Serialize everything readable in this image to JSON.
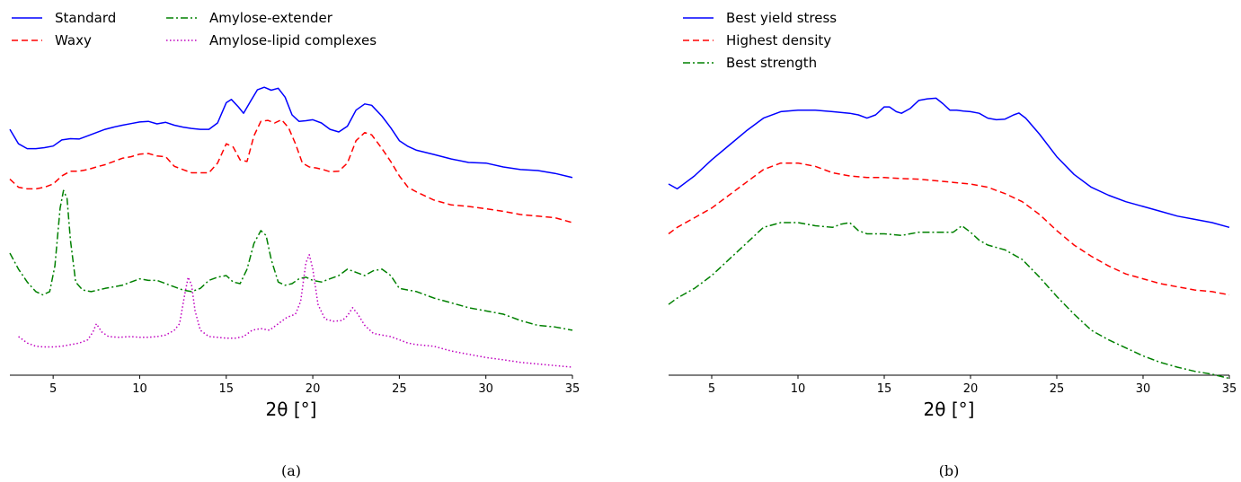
{
  "chart_data": [
    {
      "type": "line",
      "caption": "(a)",
      "xlabel": "2θ [°]",
      "ylabel": "",
      "xlim": [
        2.5,
        35
      ],
      "xticks": [
        5,
        10,
        15,
        20,
        25,
        30,
        35
      ],
      "ylim": [
        0,
        1
      ],
      "y_axis_visible": false,
      "grid": false,
      "legend_position": "top-left, two columns",
      "series": [
        {
          "name": "Standard",
          "color": "#0000ff",
          "dash": "solid",
          "x": [
            2.5,
            3,
            3.5,
            4,
            4.5,
            5,
            5.5,
            6,
            6.5,
            7,
            7.5,
            8,
            8.5,
            9,
            9.5,
            10,
            10.5,
            11,
            11.5,
            12,
            12.5,
            13,
            13.5,
            14,
            14.5,
            15,
            15.3,
            15.7,
            16,
            16.4,
            16.8,
            17.2,
            17.6,
            18,
            18.4,
            18.8,
            19.2,
            19.6,
            20,
            20.5,
            21,
            21.5,
            22,
            22.5,
            23,
            23.4,
            24,
            24.5,
            25,
            25.5,
            26,
            27,
            28,
            29,
            30,
            31,
            32,
            33,
            34,
            35
          ],
          "y": [
            0.765,
            0.72,
            0.705,
            0.705,
            0.708,
            0.713,
            0.732,
            0.736,
            0.735,
            0.745,
            0.755,
            0.765,
            0.772,
            0.778,
            0.783,
            0.788,
            0.79,
            0.782,
            0.787,
            0.778,
            0.772,
            0.768,
            0.765,
            0.765,
            0.785,
            0.848,
            0.858,
            0.835,
            0.815,
            0.852,
            0.888,
            0.896,
            0.887,
            0.893,
            0.865,
            0.81,
            0.79,
            0.792,
            0.795,
            0.785,
            0.765,
            0.757,
            0.775,
            0.825,
            0.844,
            0.84,
            0.806,
            0.77,
            0.73,
            0.712,
            0.7,
            0.687,
            0.673,
            0.662,
            0.66,
            0.648,
            0.64,
            0.637,
            0.628,
            0.615
          ]
        },
        {
          "name": "Waxy",
          "color": "#ff0000",
          "dash": "dashed",
          "x": [
            2.5,
            3,
            3.5,
            4,
            4.5,
            5,
            5.5,
            6,
            6.5,
            7,
            7.5,
            8,
            8.5,
            9,
            9.5,
            10,
            10.5,
            11,
            11.5,
            12,
            12.5,
            13,
            13.5,
            14,
            14.5,
            15,
            15.4,
            15.8,
            16.2,
            16.6,
            17,
            17.4,
            17.8,
            18.2,
            18.6,
            19,
            19.4,
            19.8,
            20.2,
            20.6,
            21,
            21.5,
            22,
            22.5,
            23,
            23.4,
            24,
            24.5,
            25,
            25.5,
            26,
            27,
            28,
            29,
            30,
            31,
            32,
            33,
            34,
            35
          ],
          "y": [
            0.61,
            0.585,
            0.58,
            0.58,
            0.585,
            0.595,
            0.62,
            0.635,
            0.635,
            0.64,
            0.648,
            0.655,
            0.665,
            0.675,
            0.68,
            0.688,
            0.69,
            0.682,
            0.68,
            0.65,
            0.64,
            0.63,
            0.63,
            0.63,
            0.66,
            0.72,
            0.71,
            0.67,
            0.665,
            0.745,
            0.79,
            0.793,
            0.785,
            0.795,
            0.77,
            0.72,
            0.66,
            0.648,
            0.645,
            0.64,
            0.633,
            0.635,
            0.66,
            0.73,
            0.755,
            0.748,
            0.705,
            0.665,
            0.62,
            0.585,
            0.57,
            0.545,
            0.53,
            0.525,
            0.518,
            0.51,
            0.5,
            0.495,
            0.49,
            0.475
          ]
        },
        {
          "name": "Amylose-extender",
          "color": "#008000",
          "dash": "dashdot",
          "x": [
            2.5,
            3,
            3.5,
            4,
            4.4,
            4.8,
            5.1,
            5.4,
            5.6,
            5.8,
            6,
            6.3,
            6.7,
            7.2,
            8,
            9,
            10,
            10.5,
            11,
            11.5,
            12,
            12.5,
            13,
            13.5,
            14,
            14.5,
            15,
            15.4,
            15.8,
            16.2,
            16.6,
            17,
            17.3,
            17.6,
            18,
            18.4,
            18.8,
            19.2,
            19.6,
            20,
            20.5,
            21,
            21.5,
            22,
            22.5,
            23,
            23.5,
            24,
            24.5,
            25,
            25.5,
            26,
            27,
            28,
            29,
            30,
            31,
            32,
            33,
            34,
            35
          ],
          "y": [
            0.38,
            0.33,
            0.29,
            0.26,
            0.25,
            0.26,
            0.34,
            0.52,
            0.575,
            0.55,
            0.42,
            0.29,
            0.265,
            0.26,
            0.27,
            0.28,
            0.3,
            0.295,
            0.295,
            0.285,
            0.275,
            0.265,
            0.26,
            0.27,
            0.295,
            0.305,
            0.31,
            0.29,
            0.285,
            0.33,
            0.41,
            0.45,
            0.435,
            0.36,
            0.29,
            0.28,
            0.285,
            0.3,
            0.305,
            0.295,
            0.29,
            0.3,
            0.31,
            0.33,
            0.32,
            0.31,
            0.325,
            0.33,
            0.31,
            0.27,
            0.265,
            0.26,
            0.24,
            0.225,
            0.21,
            0.2,
            0.19,
            0.17,
            0.155,
            0.15,
            0.14
          ]
        },
        {
          "name": "Amylose-lipid complexes",
          "color": "#bf00bf",
          "dash": "dotted",
          "x": [
            3,
            3.5,
            4,
            4.5,
            5,
            5.5,
            6,
            6.5,
            7,
            7.3,
            7.5,
            7.8,
            8.2,
            8.8,
            9.5,
            10,
            10.5,
            11,
            11.5,
            12,
            12.3,
            12.6,
            12.8,
            13,
            13.2,
            13.5,
            14,
            14.5,
            15,
            15.5,
            16,
            16.5,
            17,
            17.5,
            18,
            18.5,
            19,
            19.3,
            19.6,
            19.8,
            20,
            20.3,
            20.7,
            21.2,
            21.7,
            22,
            22.3,
            22.6,
            23,
            23.5,
            24,
            24.5,
            25,
            25.5,
            26,
            27,
            28,
            29,
            30,
            31,
            32,
            33,
            34,
            35
          ],
          "y": [
            0.12,
            0.1,
            0.09,
            0.088,
            0.088,
            0.09,
            0.095,
            0.1,
            0.11,
            0.135,
            0.16,
            0.135,
            0.12,
            0.118,
            0.12,
            0.118,
            0.118,
            0.12,
            0.125,
            0.14,
            0.16,
            0.25,
            0.305,
            0.28,
            0.2,
            0.14,
            0.12,
            0.118,
            0.115,
            0.115,
            0.12,
            0.14,
            0.145,
            0.14,
            0.16,
            0.18,
            0.19,
            0.23,
            0.35,
            0.375,
            0.33,
            0.22,
            0.175,
            0.168,
            0.17,
            0.185,
            0.21,
            0.19,
            0.155,
            0.13,
            0.125,
            0.12,
            0.11,
            0.1,
            0.095,
            0.09,
            0.075,
            0.065,
            0.055,
            0.048,
            0.04,
            0.035,
            0.03,
            0.025
          ]
        }
      ]
    },
    {
      "type": "line",
      "caption": "(b)",
      "xlabel": "2θ [°]",
      "ylabel": "",
      "xlim": [
        2.5,
        35
      ],
      "xticks": [
        5,
        10,
        15,
        20,
        25,
        30,
        35
      ],
      "ylim": [
        0,
        1
      ],
      "y_axis_visible": false,
      "grid": false,
      "legend_position": "top-left",
      "series": [
        {
          "name": "Best yield stress",
          "color": "#0000ff",
          "dash": "solid",
          "x": [
            2.5,
            3,
            3.5,
            4,
            5,
            6,
            7,
            8,
            9,
            10,
            11,
            12,
            13,
            13.5,
            14,
            14.5,
            15,
            15.3,
            15.7,
            16,
            16.5,
            17,
            17.5,
            18,
            18.4,
            18.8,
            19.2,
            19.6,
            20,
            20.5,
            21,
            21.5,
            22,
            22.5,
            22.8,
            23.2,
            24,
            25,
            26,
            27,
            28,
            29,
            30,
            31,
            32,
            33,
            34,
            35
          ],
          "y": [
            0.595,
            0.58,
            0.6,
            0.62,
            0.67,
            0.715,
            0.76,
            0.8,
            0.82,
            0.825,
            0.825,
            0.82,
            0.815,
            0.81,
            0.8,
            0.81,
            0.835,
            0.835,
            0.82,
            0.815,
            0.83,
            0.855,
            0.86,
            0.862,
            0.845,
            0.825,
            0.825,
            0.822,
            0.82,
            0.815,
            0.8,
            0.795,
            0.797,
            0.81,
            0.816,
            0.8,
            0.75,
            0.68,
            0.625,
            0.585,
            0.56,
            0.54,
            0.525,
            0.51,
            0.495,
            0.485,
            0.475,
            0.46
          ]
        },
        {
          "name": "Highest density",
          "color": "#ff0000",
          "dash": "dashed",
          "x": [
            2.5,
            3,
            4,
            5,
            6,
            7,
            8,
            9,
            10,
            11,
            12,
            13,
            14,
            15,
            16,
            17,
            18,
            19,
            20,
            21,
            22,
            23,
            24,
            25,
            26,
            27,
            28,
            29,
            30,
            31,
            32,
            33,
            34,
            35
          ],
          "y": [
            0.44,
            0.46,
            0.49,
            0.52,
            0.56,
            0.6,
            0.64,
            0.66,
            0.66,
            0.65,
            0.63,
            0.62,
            0.615,
            0.615,
            0.612,
            0.61,
            0.605,
            0.6,
            0.595,
            0.585,
            0.565,
            0.54,
            0.5,
            0.45,
            0.405,
            0.37,
            0.34,
            0.315,
            0.3,
            0.285,
            0.275,
            0.265,
            0.26,
            0.25
          ]
        },
        {
          "name": "Best strength",
          "color": "#008000",
          "dash": "dashdot",
          "x": [
            2.5,
            3,
            4,
            5,
            6,
            7,
            8,
            9,
            10,
            11,
            12,
            12.5,
            13,
            13.5,
            14,
            15,
            16,
            17,
            18,
            19,
            19.5,
            20,
            20.5,
            21,
            22,
            23,
            24,
            25,
            26,
            27,
            28,
            29,
            30,
            31,
            32,
            33,
            34,
            35
          ],
          "y": [
            0.22,
            0.24,
            0.27,
            0.31,
            0.36,
            0.41,
            0.46,
            0.475,
            0.475,
            0.465,
            0.46,
            0.47,
            0.475,
            0.45,
            0.44,
            0.44,
            0.435,
            0.445,
            0.445,
            0.445,
            0.465,
            0.445,
            0.42,
            0.405,
            0.39,
            0.36,
            0.305,
            0.245,
            0.19,
            0.14,
            0.11,
            0.085,
            0.06,
            0.04,
            0.025,
            0.012,
            0.003,
            -0.01
          ]
        }
      ]
    }
  ]
}
